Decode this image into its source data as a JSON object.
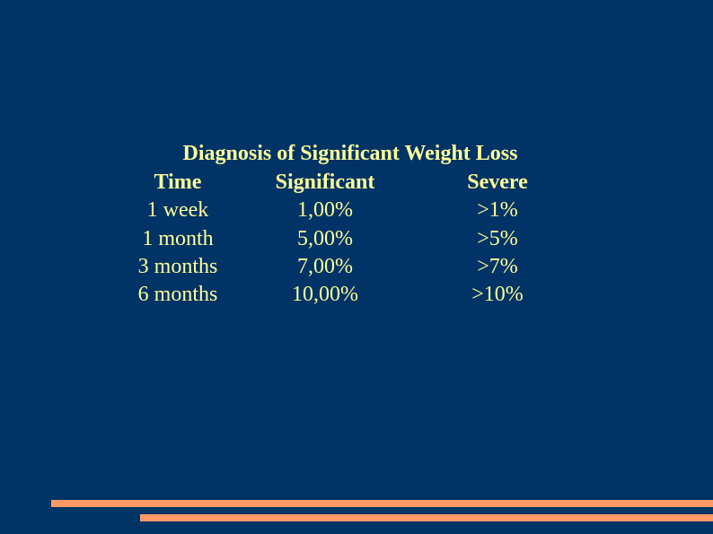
{
  "colors": {
    "background": "#003366",
    "text": "#FFFF99",
    "accent_bars": "#FF9966"
  },
  "slide": {
    "title": "Diagnosis of Significant Weight Loss",
    "table": {
      "headers": [
        "Time",
        "Significant",
        "Severe"
      ],
      "rows": [
        [
          "1 week",
          "1,00%",
          ">1%"
        ],
        [
          "1 month",
          "5,00%",
          ">5%"
        ],
        [
          "3 months",
          "7,00%",
          ">7%"
        ],
        [
          "6 months",
          "10,00%",
          ">10%"
        ]
      ]
    }
  }
}
